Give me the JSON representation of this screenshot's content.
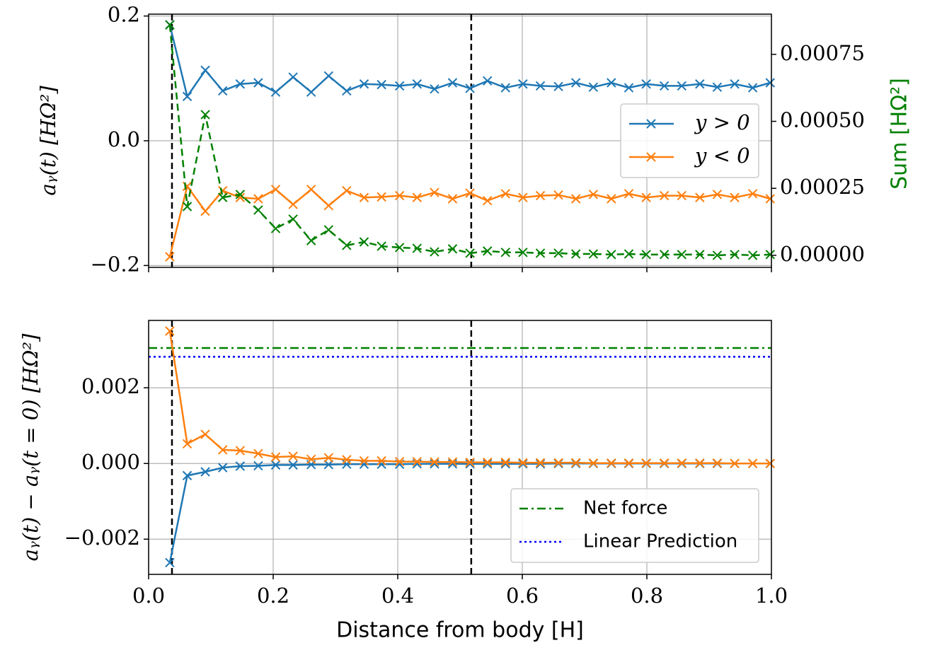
{
  "chart_data": [
    {
      "type": "line",
      "x": [
        0.034,
        0.062,
        0.091,
        0.119,
        0.147,
        0.176,
        0.204,
        0.232,
        0.261,
        0.289,
        0.318,
        0.346,
        0.374,
        0.403,
        0.431,
        0.459,
        0.488,
        0.516,
        0.544,
        0.573,
        0.601,
        0.629,
        0.658,
        0.686,
        0.714,
        0.743,
        0.771,
        0.799,
        0.828,
        0.856,
        0.885,
        0.913,
        0.941,
        0.97,
        0.998
      ],
      "xlim": [
        0,
        1
      ],
      "xticks": [
        0,
        0.2,
        0.4,
        0.6,
        0.8,
        1
      ],
      "ylabel": "aᵧ(t) [HΩ²]",
      "y2label": "Sum [HΩ²]",
      "ylim": [
        -0.203,
        0.203
      ],
      "yticks": [
        {
          "value": -0.2,
          "label": "−0.2"
        },
        {
          "value": 0,
          "label": "0.0"
        },
        0.2
      ],
      "y2lim": [
        -4.5e-05,
        0.0009
      ],
      "y2ticks": [
        {
          "value": 0,
          "label": "0.00000"
        },
        {
          "value": 0.00025,
          "label": "0.00025"
        },
        {
          "value": 0.0005,
          "label": "0.00050"
        },
        {
          "value": 0.00075,
          "label": "0.00075"
        }
      ],
      "y2color": "#008000",
      "grid": true,
      "marker": "x",
      "legend": "center right",
      "vlines": [
        0.0375,
        0.518
      ],
      "series": [
        {
          "name": "y > 0",
          "color": "#1f77b4",
          "values": [
            0.186,
            0.071,
            0.113,
            0.08,
            0.091,
            0.093,
            0.078,
            0.102,
            0.078,
            0.104,
            0.08,
            0.091,
            0.09,
            0.088,
            0.091,
            0.083,
            0.093,
            0.084,
            0.096,
            0.085,
            0.091,
            0.088,
            0.087,
            0.093,
            0.086,
            0.093,
            0.085,
            0.091,
            0.088,
            0.088,
            0.091,
            0.086,
            0.091,
            0.085,
            0.093
          ]
        },
        {
          "name": "y < 0",
          "color": "#ff7f0e",
          "values": [
            -0.186,
            -0.073,
            -0.113,
            -0.08,
            -0.091,
            -0.093,
            -0.078,
            -0.102,
            -0.078,
            -0.104,
            -0.08,
            -0.091,
            -0.09,
            -0.088,
            -0.091,
            -0.083,
            -0.093,
            -0.084,
            -0.096,
            -0.085,
            -0.091,
            -0.088,
            -0.087,
            -0.093,
            -0.086,
            -0.093,
            -0.085,
            -0.091,
            -0.088,
            -0.088,
            -0.091,
            -0.086,
            -0.091,
            -0.085,
            -0.093
          ]
        },
        {
          "color": "#008000",
          "axis": "y2",
          "style": "dashed",
          "values": [
            0.00086,
            0.000182,
            0.000525,
            0.000216,
            0.000227,
            0.000169,
            0.0001,
            0.000135,
            5.5e-05,
            9.5e-05,
            3.7e-05,
            5e-05,
            3.4e-05,
            2.9e-05,
            2.6e-05,
            1.3e-05,
            2.4e-05,
            8e-06,
            1.6e-05,
            1.1e-05,
            1.1e-05,
            8e-06,
            8e-06,
            5e-06,
            5e-06,
            3e-06,
            5e-06,
            3e-06,
            3e-06,
            3e-06,
            3e-06,
            0,
            3e-06,
            0,
            3e-06
          ]
        }
      ]
    },
    {
      "type": "line",
      "x": [
        0.034,
        0.062,
        0.091,
        0.119,
        0.147,
        0.176,
        0.204,
        0.232,
        0.261,
        0.289,
        0.318,
        0.346,
        0.374,
        0.403,
        0.431,
        0.459,
        0.488,
        0.516,
        0.544,
        0.573,
        0.601,
        0.629,
        0.658,
        0.686,
        0.714,
        0.743,
        0.771,
        0.799,
        0.828,
        0.856,
        0.885,
        0.913,
        0.941,
        0.97,
        0.998
      ],
      "xlim": [
        0,
        1
      ],
      "xticks": [
        {
          "value": 0,
          "label": "0.0"
        },
        0.2,
        0.4,
        0.6,
        0.8,
        {
          "value": 1,
          "label": "1.0"
        }
      ],
      "xlabel": "Distance from body [H]",
      "ylabel": "aᵧ(t) − aᵧ(t = 0) [HΩ²]",
      "ylim": [
        -0.00293,
        0.00378
      ],
      "yticks": [
        {
          "value": -0.002,
          "label": "−0.002"
        },
        {
          "value": 0,
          "label": "0.000"
        },
        0.002
      ],
      "grid": true,
      "marker": "x",
      "legend": "lower right",
      "vlines": [
        0.0375,
        0.518
      ],
      "series": [
        {
          "color": "#1f77b4",
          "values": [
            -0.00262,
            -0.00032,
            -0.00022,
            -0.00011,
            -7e-05,
            -6e-05,
            -4e-05,
            -4e-05,
            -3e-05,
            -3e-05,
            -2e-05,
            -2e-05,
            -2e-05,
            -2e-05,
            -1e-05,
            -1e-05,
            -1e-05,
            -1e-05,
            -1e-05,
            -1e-05,
            -1e-05,
            -1e-05,
            0,
            0,
            0,
            0,
            0,
            0,
            0,
            0,
            0,
            0,
            0,
            0,
            0
          ]
        },
        {
          "color": "#ff7f0e",
          "values": [
            0.0035,
            0.00052,
            0.00077,
            0.00036,
            0.00034,
            0.00026,
            0.00017,
            0.00019,
            0.00011,
            0.00015,
            0.0001,
            7e-05,
            7e-05,
            5e-05,
            5e-05,
            4e-05,
            4e-05,
            3e-05,
            3e-05,
            3e-05,
            2e-05,
            2e-05,
            2e-05,
            2e-05,
            1e-05,
            1e-05,
            1e-05,
            1e-05,
            1e-05,
            1e-05,
            1e-05,
            1e-05,
            0,
            0,
            0
          ]
        }
      ],
      "hlines": [
        {
          "name": "Net force",
          "color": "#008000",
          "style": "dashdot",
          "value": 0.00305
        },
        {
          "name": "Linear Prediction",
          "color": "#0000ff",
          "style": "dotted",
          "value": 0.00282
        }
      ]
    }
  ]
}
